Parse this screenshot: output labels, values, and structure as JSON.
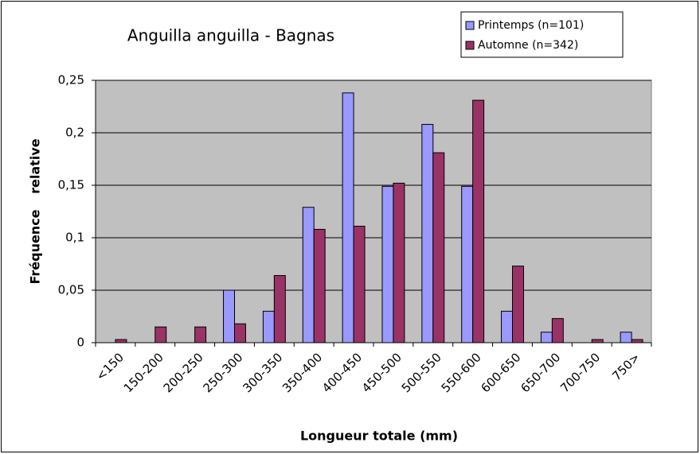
{
  "chart_data": {
    "type": "bar",
    "title": "Anguilla anguilla - Bagnas",
    "x_label": "Longueur totale (mm)",
    "y_label": "Fréquence relative",
    "categories": [
      "<150",
      "150-200",
      "200-250",
      "250-300",
      "300-350",
      "350-400",
      "400-450",
      "450-500",
      "500-550",
      "550-600",
      "600-650",
      "650-700",
      "700-750",
      "750>"
    ],
    "series": [
      {
        "name": "Printemps (n=101)",
        "color": "#9999ff",
        "values": [
          0,
          0,
          0,
          0.05,
          0.03,
          0.129,
          0.238,
          0.149,
          0.208,
          0.149,
          0.03,
          0.01,
          0,
          0.01
        ]
      },
      {
        "name": "Automne (n=342)",
        "color": "#993366",
        "values": [
          0.003,
          0.015,
          0.015,
          0.018,
          0.064,
          0.108,
          0.111,
          0.152,
          0.181,
          0.231,
          0.073,
          0.023,
          0.003,
          0.003
        ]
      }
    ],
    "ylim": [
      0,
      0.25
    ],
    "yticks": [
      0,
      {
        "value": 0.05,
        "label": "0,05"
      },
      {
        "value": 0.1,
        "label": "0,1"
      },
      {
        "value": 0.15,
        "label": "0,15"
      },
      {
        "value": 0.2,
        "label": "0,2"
      },
      {
        "value": 0.25,
        "label": "0,25"
      }
    ],
    "grid": true,
    "legend": "top-right"
  }
}
